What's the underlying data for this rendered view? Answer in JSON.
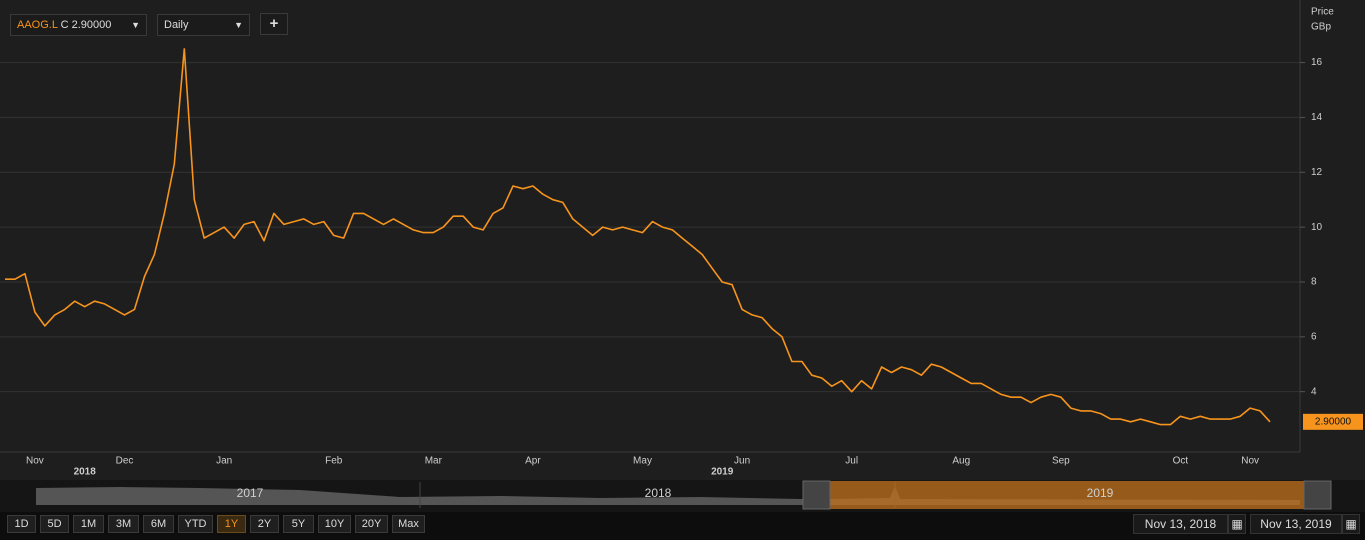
{
  "toolbar": {
    "symbol": "AAOG.L",
    "close": "C 2.90000",
    "interval": "Daily",
    "add": "+"
  },
  "navigator": {
    "years": [
      "2017",
      "2018",
      "2019"
    ]
  },
  "range_buttons": [
    "1D",
    "5D",
    "1M",
    "3M",
    "6M",
    "YTD",
    "1Y",
    "2Y",
    "5Y",
    "10Y",
    "20Y",
    "Max"
  ],
  "active_range": "1Y",
  "date_range": {
    "from": "Nov 13, 2018",
    "to": "Nov 13, 2019"
  },
  "chart_data": {
    "type": "line",
    "y_axis_label": [
      "Price",
      "GBp"
    ],
    "categories": [
      null,
      null,
      null,
      "Nov",
      null,
      null,
      null,
      null,
      null,
      null,
      null,
      null,
      "Dec",
      null,
      null,
      null,
      null,
      null,
      null,
      null,
      null,
      null,
      "Jan",
      null,
      null,
      null,
      null,
      null,
      null,
      null,
      null,
      null,
      null,
      "Feb",
      null,
      null,
      null,
      null,
      null,
      null,
      null,
      null,
      null,
      "Mar",
      null,
      null,
      null,
      null,
      null,
      null,
      null,
      null,
      null,
      "Apr",
      null,
      null,
      null,
      null,
      null,
      null,
      null,
      null,
      null,
      null,
      "May",
      null,
      null,
      null,
      null,
      null,
      null,
      null,
      null,
      null,
      "Jun",
      null,
      null,
      null,
      null,
      null,
      null,
      null,
      null,
      null,
      null,
      "Jul",
      null,
      null,
      null,
      null,
      null,
      null,
      null,
      null,
      null,
      null,
      "Aug",
      null,
      null,
      null,
      null,
      null,
      null,
      null,
      null,
      null,
      "Sep",
      null,
      null,
      null,
      null,
      null,
      null,
      null,
      null,
      null,
      null,
      null,
      "Oct",
      null,
      null,
      null,
      null,
      null,
      null,
      "Nov",
      null,
      null
    ],
    "years": [
      null,
      null,
      null,
      null,
      null,
      null,
      null,
      null,
      "2018",
      null,
      null,
      null,
      null,
      null,
      null,
      null,
      null,
      null,
      null,
      null,
      null,
      null,
      null,
      null,
      null,
      null,
      null,
      null,
      null,
      null,
      null,
      null,
      null,
      null,
      null,
      null,
      null,
      null,
      null,
      null,
      null,
      null,
      null,
      null,
      null,
      null,
      null,
      null,
      null,
      null,
      null,
      null,
      null,
      null,
      null,
      null,
      null,
      null,
      null,
      null,
      null,
      null,
      null,
      null,
      null,
      null,
      null,
      null,
      null,
      null,
      null,
      null,
      "2019",
      null,
      null,
      null,
      null,
      null,
      null,
      null,
      null,
      null,
      null,
      null,
      null,
      null,
      null,
      null,
      null,
      null,
      null,
      null,
      null,
      null,
      null,
      null,
      null,
      null,
      null,
      null,
      null,
      null,
      null,
      null,
      null,
      null,
      null,
      null,
      null,
      null,
      null,
      null,
      null,
      null,
      null,
      null,
      null,
      null,
      null,
      null,
      null,
      null,
      null,
      null,
      null,
      null,
      null,
      null
    ],
    "series": [
      {
        "name": "AAOG.L",
        "color": "#f7941d",
        "values": [
          8.1,
          8.1,
          8.3,
          6.9,
          6.4,
          6.8,
          7.0,
          7.3,
          7.1,
          7.3,
          7.2,
          7.0,
          6.8,
          7.0,
          8.2,
          9.0,
          10.5,
          12.3,
          16.5,
          11.0,
          9.6,
          9.8,
          10.0,
          9.6,
          10.1,
          10.2,
          9.5,
          10.5,
          10.1,
          10.2,
          10.3,
          10.1,
          10.2,
          9.7,
          9.6,
          10.5,
          10.5,
          10.3,
          10.1,
          10.3,
          10.1,
          9.9,
          9.8,
          9.8,
          10.0,
          10.4,
          10.4,
          10.0,
          9.9,
          10.5,
          10.7,
          11.5,
          11.4,
          11.5,
          11.2,
          11.0,
          10.9,
          10.3,
          10.0,
          9.7,
          10.0,
          9.9,
          10.0,
          9.9,
          9.8,
          10.2,
          10.0,
          9.9,
          9.6,
          9.3,
          9.0,
          8.5,
          8.0,
          7.9,
          7.0,
          6.8,
          6.7,
          6.3,
          6.0,
          5.1,
          5.1,
          4.6,
          4.5,
          4.2,
          4.4,
          4.0,
          4.4,
          4.1,
          4.9,
          4.7,
          4.9,
          4.8,
          4.6,
          5.0,
          4.9,
          4.7,
          4.5,
          4.3,
          4.3,
          4.1,
          3.9,
          3.8,
          3.8,
          3.6,
          3.8,
          3.9,
          3.8,
          3.4,
          3.3,
          3.3,
          3.2,
          3.0,
          3.0,
          2.9,
          3.0,
          2.9,
          2.8,
          2.8,
          3.1,
          3.0,
          3.1,
          3.0,
          3.0,
          3.0,
          3.1,
          3.4,
          3.3,
          2.9
        ]
      }
    ],
    "last_price": {
      "value": 2.9,
      "label": "2.90000"
    },
    "ylim": [
      1.8,
      18.1
    ],
    "yticks": [
      4,
      6,
      8,
      10,
      12,
      14,
      16
    ],
    "grid": true,
    "y_axis_side": "right"
  }
}
